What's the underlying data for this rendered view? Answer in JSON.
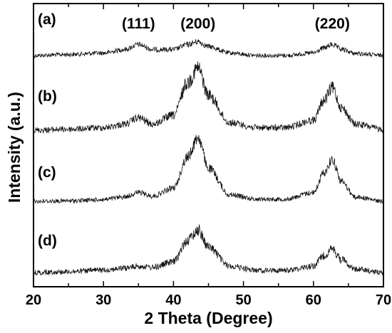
{
  "chart_data": {
    "type": "line",
    "title": "",
    "xlabel": "2 Theta (Degree)",
    "ylabel": "Intensity (a.u.)",
    "xlim": [
      20,
      70
    ],
    "xticks": [
      20,
      30,
      40,
      50,
      60,
      70
    ],
    "y_axis_tick_labels": false,
    "grid": false,
    "peak_annotations": [
      {
        "label": "(111)",
        "x": 35
      },
      {
        "label": "(200)",
        "x": 43.5
      },
      {
        "label": "(220)",
        "x": 62.7
      }
    ],
    "series": [
      {
        "name": "(a)",
        "x": [
          20,
          25,
          30,
          33,
          35,
          37,
          40,
          42,
          43.5,
          45,
          48,
          52,
          56,
          60,
          61.5,
          62.7,
          64,
          66,
          70
        ],
        "values": [
          0,
          0.02,
          0.05,
          0.12,
          0.22,
          0.12,
          0.12,
          0.22,
          0.28,
          0.18,
          0.05,
          0.0,
          0.0,
          0.05,
          0.15,
          0.22,
          0.12,
          0.04,
          0.0
        ]
      },
      {
        "name": "(b)",
        "x": [
          20,
          25,
          30,
          33,
          35,
          37,
          40,
          42,
          43.5,
          45,
          48,
          52,
          56,
          60,
          61.5,
          62.7,
          64,
          66,
          70
        ],
        "values": [
          0,
          0.02,
          0.05,
          0.12,
          0.25,
          0.12,
          0.3,
          0.95,
          1.25,
          0.7,
          0.15,
          0.05,
          0.05,
          0.2,
          0.6,
          0.85,
          0.45,
          0.12,
          0.02
        ]
      },
      {
        "name": "(c)",
        "x": [
          20,
          25,
          30,
          33,
          35,
          37,
          40,
          42,
          43.5,
          45,
          48,
          52,
          56,
          60,
          61.5,
          62.7,
          64,
          66,
          70
        ],
        "values": [
          0,
          0.01,
          0.04,
          0.1,
          0.2,
          0.12,
          0.3,
          1.0,
          1.45,
          0.75,
          0.15,
          0.05,
          0.05,
          0.2,
          0.65,
          0.95,
          0.45,
          0.1,
          0.0
        ]
      },
      {
        "name": "(d)",
        "x": [
          20,
          25,
          30,
          33,
          35,
          37,
          40,
          42,
          43.5,
          45,
          48,
          52,
          56,
          60,
          61.5,
          62.7,
          64,
          66,
          70
        ],
        "values": [
          0,
          0.02,
          0.06,
          0.1,
          0.15,
          0.12,
          0.25,
          0.75,
          1.0,
          0.6,
          0.15,
          0.05,
          0.05,
          0.15,
          0.4,
          0.55,
          0.3,
          0.08,
          0.0
        ]
      }
    ]
  }
}
